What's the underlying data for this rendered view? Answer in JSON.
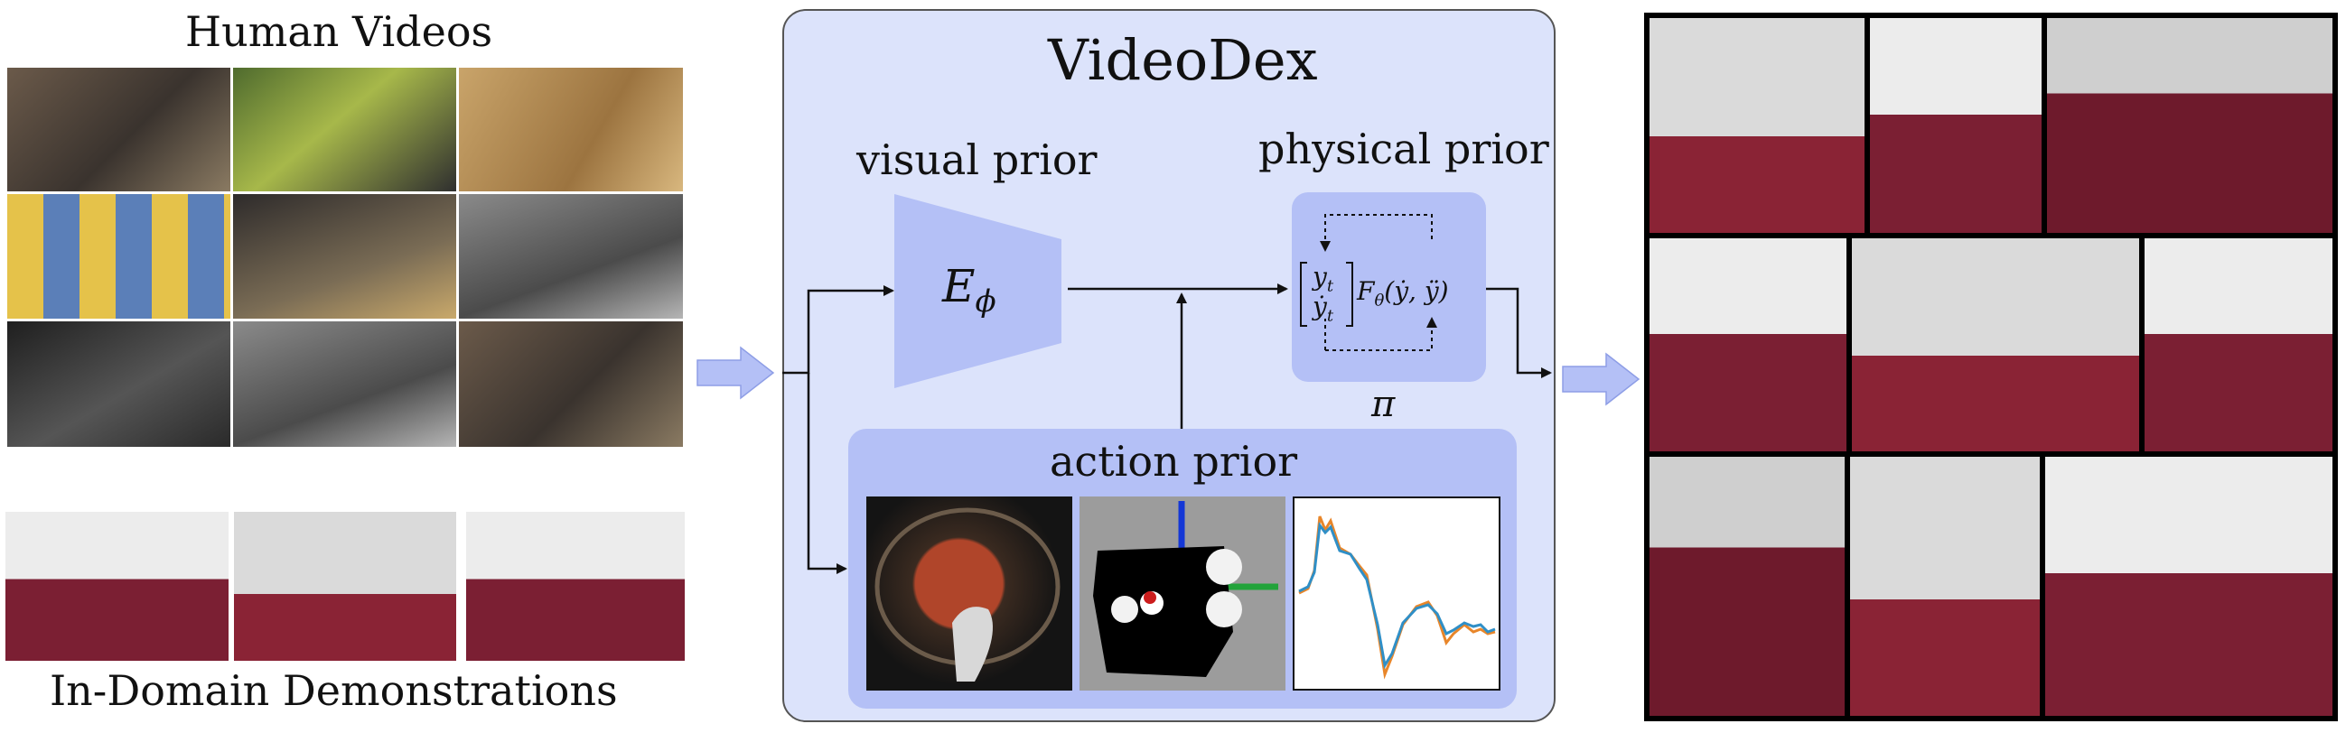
{
  "left": {
    "human_videos_title": "Human Videos",
    "demos_title": "In-Domain Demonstrations"
  },
  "center": {
    "title": "VideoDex",
    "visual_prior_label": "visual prior",
    "encoder_symbol": "E",
    "encoder_subscript": "ϕ",
    "physical_prior_label": "physical prior",
    "state_top": "y",
    "state_top_sub": "t",
    "state_bottom": "ẏ",
    "state_bottom_sub": "t",
    "dynamics": "F",
    "dynamics_sub": "θ",
    "dynamics_args": "(ẏ, ÿ)",
    "policy_symbol": "π",
    "action_prior_label": "action prior"
  },
  "colors": {
    "panel_fill": "#dce3fb",
    "panel_border": "#555555",
    "block_fill": "#b4c0f6",
    "arrow_fill": "#b4c0f6",
    "action_panel_fill": "#b4c0f6",
    "plot_orange": "#e8862a",
    "plot_blue": "#2f8fc7"
  }
}
